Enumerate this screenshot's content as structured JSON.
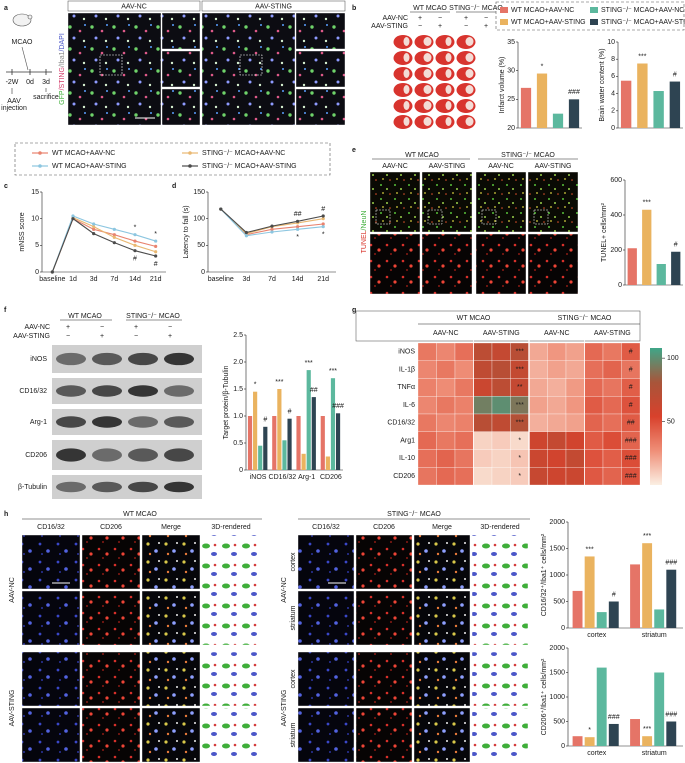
{
  "panel_labels": [
    "a",
    "b",
    "c",
    "d",
    "e",
    "f",
    "g",
    "h"
  ],
  "panel_a": {
    "surgery": "MCAO",
    "timeline": [
      "-2W",
      "0d",
      "3d"
    ],
    "injection": [
      "AAV",
      "injection"
    ],
    "sacrifice": "sacrifice",
    "groups": [
      "AAV-NC",
      "AAV-STING"
    ],
    "stain": [
      {
        "text": "GFP",
        "color": "#3fae3a"
      },
      {
        "text": "/STING",
        "color": "#d33c6a"
      },
      {
        "text": "/Iba1",
        "color": "#8a8a8a"
      },
      {
        "text": "/DAPI",
        "color": "#4a56c8"
      }
    ]
  },
  "panel_b": {
    "headers": [
      "WT MCAO",
      "STING⁻/⁻ MCAO"
    ],
    "rows": [
      {
        "label": "AAV-NC",
        "signs": [
          "+",
          "−",
          "+",
          "−"
        ]
      },
      {
        "label": "AAV-STING",
        "signs": [
          "−",
          "+",
          "−",
          "+"
        ]
      }
    ],
    "legend": [
      {
        "name": "WT MCAO+AAV-NC",
        "color": "#e57467"
      },
      {
        "name": "WT MCAO+AAV-STING",
        "color": "#eab35f"
      },
      {
        "name": "STING⁻/⁻ MCAO+AAV-NC",
        "color": "#5cb89e"
      },
      {
        "name": "STING⁻/⁻ MCAO+AAV-STING",
        "color": "#2e4452"
      }
    ]
  },
  "panel_e": {
    "headers": [
      "WT MCAO",
      "STING⁻/⁻ MCAO"
    ],
    "columns": [
      "AAV-NC",
      "AAV-STING",
      "AAV-NC",
      "AAV-STING"
    ],
    "stain": [
      {
        "text": "TUNEL",
        "color": "#d9342b"
      },
      {
        "text": "/NeuN",
        "color": "#3fae3a"
      }
    ]
  },
  "panel_f": {
    "headers": [
      "WT MCAO",
      "STING⁻/⁻ MCAO"
    ],
    "rows": [
      {
        "label": "AAV-NC",
        "signs": [
          "+",
          "−",
          "+",
          "−"
        ]
      },
      {
        "label": "AAV-STING",
        "signs": [
          "−",
          "+",
          "−",
          "+"
        ]
      }
    ],
    "blots": [
      "iNOS",
      "CD16/32",
      "Arg-1",
      "CD206",
      "β-Tubulin"
    ]
  },
  "panel_g": {
    "headers": [
      "WT MCAO",
      "STING⁻/⁻ MCAO"
    ],
    "columns": [
      "AAV-NC",
      "AAV-STING",
      "AAV-NC",
      "AAV-STING"
    ],
    "colormap": [
      "#fbefe3",
      "#ef8f78",
      "#d8412c",
      "#a8553a",
      "#3fa688"
    ],
    "clim": [
      0,
      108
    ],
    "colorbar_ticks": [
      50,
      100
    ],
    "rows": [
      {
        "label": "iNOS",
        "values": [
          35,
          30,
          38,
          70,
          65,
          72,
          20,
          25,
          22,
          40,
          35,
          45
        ],
        "significance": [
          "***",
          "#"
        ]
      },
      {
        "label": "IL-1β",
        "values": [
          30,
          35,
          28,
          68,
          72,
          66,
          18,
          22,
          20,
          38,
          42,
          36
        ],
        "significance": [
          "***",
          "#"
        ]
      },
      {
        "label": "TNFα",
        "values": [
          32,
          28,
          35,
          62,
          70,
          65,
          20,
          18,
          24,
          40,
          36,
          44
        ],
        "significance": [
          "**",
          "#"
        ]
      },
      {
        "label": "IL-6",
        "values": [
          30,
          35,
          32,
          95,
          100,
          92,
          22,
          20,
          25,
          45,
          40,
          48
        ],
        "significance": [
          "***",
          "#"
        ]
      },
      {
        "label": "CD16/32",
        "values": [
          35,
          30,
          32,
          72,
          68,
          75,
          18,
          20,
          22,
          42,
          38,
          45
        ],
        "significance": [
          "***",
          "##"
        ]
      },
      {
        "label": "Arg1",
        "values": [
          40,
          35,
          38,
          8,
          10,
          6,
          60,
          65,
          58,
          45,
          50,
          42
        ],
        "significance": [
          "*",
          "###"
        ]
      },
      {
        "label": "IL-10",
        "values": [
          38,
          42,
          36,
          10,
          8,
          12,
          62,
          58,
          66,
          48,
          44,
          50
        ],
        "significance": [
          "*",
          "###"
        ]
      },
      {
        "label": "CD206",
        "values": [
          36,
          40,
          38,
          6,
          8,
          10,
          64,
          60,
          62,
          46,
          42,
          48
        ],
        "significance": [
          "*",
          "###"
        ]
      }
    ]
  },
  "panel_h": {
    "headers": [
      "WT MCAO",
      "STING⁻/⁻ MCAO"
    ],
    "columns": [
      {
        "label": "CD16/32",
        "color": "#4a5bd6"
      },
      {
        "label": "CD206",
        "color": "#d9342b"
      },
      {
        "label": "Merge",
        "color": "#e8922a"
      },
      {
        "label": "3D-rendered",
        "color": "#222222"
      }
    ],
    "groups": [
      "AAV-NC",
      "AAV-STING"
    ],
    "regions": [
      "cortex",
      "striatum"
    ]
  },
  "chart_data": [
    {
      "type": "bar",
      "ylabel": "Infarct volume (%)",
      "values": [
        27,
        29.5,
        22.5,
        25
      ],
      "significance": [
        null,
        "*",
        null,
        "###"
      ],
      "ylim": [
        20,
        35
      ],
      "yticks": [
        20,
        25,
        30,
        35
      ]
    },
    {
      "type": "bar",
      "ylabel": "Brain water content (%)",
      "values": [
        5.5,
        7.5,
        4.3,
        5.4
      ],
      "significance": [
        null,
        "***",
        null,
        "#"
      ],
      "ylim": [
        0,
        10
      ],
      "yticks": [
        0,
        2,
        4,
        6,
        8,
        10
      ]
    },
    {
      "type": "line",
      "ylabel": "mNSS score",
      "categories": [
        "baseline",
        "1d",
        "3d",
        "7d",
        "14d",
        "21d"
      ],
      "ylim": [
        0,
        15
      ],
      "yticks": [
        0,
        5,
        10,
        15
      ],
      "series": [
        {
          "name": "WT MCAO+AAV-NC",
          "color": "#e8836f",
          "values": [
            0,
            10,
            8,
            7,
            5.8,
            4.8
          ]
        },
        {
          "name": "STING⁻/⁻ MCAO+AAV-NC",
          "color": "#e9b872",
          "values": [
            0,
            10.2,
            8.5,
            6.5,
            5,
            3.8
          ]
        },
        {
          "name": "WT MCAO+AAV-STING",
          "color": "#8cc6e0",
          "values": [
            0,
            10.5,
            9,
            8,
            7,
            5.8
          ],
          "significance": [
            null,
            null,
            null,
            null,
            "*",
            "*"
          ]
        },
        {
          "name": "STING⁻/⁻ MCAO+AAV-STING",
          "color": "#4b4b4b",
          "values": [
            0,
            10,
            7.2,
            5.5,
            4,
            3
          ],
          "significance": [
            null,
            null,
            null,
            null,
            "#",
            "#"
          ]
        }
      ]
    },
    {
      "type": "line",
      "ylabel": "Latency to fall (s)",
      "categories": [
        "baseline",
        "3d",
        "7d",
        "14d",
        "21d"
      ],
      "ylim": [
        0,
        150
      ],
      "yticks": [
        0,
        50,
        100,
        150
      ],
      "series": [
        {
          "color": "#e8836f",
          "values": [
            118,
            70,
            80,
            85,
            90
          ]
        },
        {
          "color": "#e9b872",
          "values": [
            118,
            72,
            85,
            92,
            100
          ]
        },
        {
          "color": "#8cc6e0",
          "values": [
            118,
            68,
            75,
            80,
            85
          ],
          "significance": [
            null,
            null,
            null,
            "*",
            "*"
          ]
        },
        {
          "color": "#4b4b4b",
          "values": [
            118,
            74,
            86,
            95,
            105
          ],
          "significance": [
            null,
            null,
            null,
            "##",
            "#"
          ]
        }
      ]
    },
    {
      "type": "bar",
      "ylabel": "TUNEL+ cells/mm²",
      "values": [
        210,
        430,
        120,
        190
      ],
      "significance": [
        null,
        "***",
        null,
        "#"
      ],
      "ylim": [
        0,
        600
      ],
      "yticks": [
        0,
        200,
        400,
        600
      ]
    },
    {
      "type": "bar",
      "ylabel": "Target protein/β-Tubulin",
      "categories": [
        "iNOS",
        "CD16/32",
        "Arg-1",
        "CD206"
      ],
      "ylim": [
        0,
        2.5
      ],
      "yticks": [
        0,
        0.5,
        {
          "value": 1,
          "label": "1.0"
        },
        1.5,
        {
          "value": 2,
          "label": "2.0"
        },
        2.5
      ],
      "series": [
        {
          "values": [
            1.0,
            1.0,
            1.0,
            1.0
          ]
        },
        {
          "values": [
            1.45,
            1.5,
            0.3,
            0.25
          ],
          "significance": [
            "*",
            "***",
            null,
            null
          ]
        },
        {
          "values": [
            0.45,
            0.55,
            1.85,
            1.7
          ],
          "significance": [
            null,
            null,
            "***",
            "***"
          ]
        },
        {
          "values": [
            0.8,
            0.95,
            1.35,
            1.05
          ],
          "significance": [
            "#",
            "#",
            "##",
            "###"
          ]
        }
      ]
    },
    {
      "type": "bar",
      "ylabel": "CD16/32⁺/Iba1⁺ cells/mm²",
      "categories": [
        "cortex",
        "striatum"
      ],
      "ylim": [
        0,
        2000
      ],
      "yticks": [
        0,
        500,
        1000,
        1500,
        2000
      ],
      "series": [
        {
          "values": [
            700,
            1200
          ]
        },
        {
          "values": [
            1350,
            1600
          ],
          "significance": [
            "***",
            "***"
          ]
        },
        {
          "values": [
            300,
            350
          ]
        },
        {
          "values": [
            500,
            1100
          ],
          "significance": [
            "#",
            "###"
          ]
        }
      ]
    },
    {
      "type": "bar",
      "ylabel": "CD206⁺/Iba1⁺ cells/mm²",
      "categories": [
        "cortex",
        "striatum"
      ],
      "ylim": [
        0,
        2000
      ],
      "yticks": [
        0,
        500,
        1000,
        1500,
        2000
      ],
      "series": [
        {
          "values": [
            200,
            550
          ]
        },
        {
          "values": [
            180,
            200
          ],
          "significance": [
            "*",
            "***"
          ]
        },
        {
          "values": [
            1600,
            1500
          ]
        },
        {
          "values": [
            450,
            500
          ],
          "significance": [
            "###",
            "###"
          ]
        }
      ]
    }
  ]
}
